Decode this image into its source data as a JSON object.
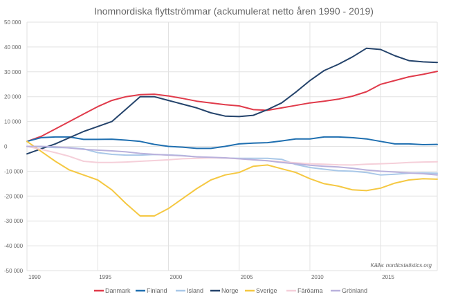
{
  "chart_data": {
    "type": "line",
    "title": "Inomnordiska flyttströmmar (ackumulerat netto åren 1990 - 2019)",
    "source_note": "Källa: nordicstatistics.org",
    "xlabel": "",
    "ylabel": "",
    "x": [
      1990,
      1991,
      1992,
      1993,
      1994,
      1995,
      1996,
      1997,
      1998,
      1999,
      2000,
      2001,
      2002,
      2003,
      2004,
      2005,
      2006,
      2007,
      2008,
      2009,
      2010,
      2011,
      2012,
      2013,
      2014,
      2015,
      2016,
      2017,
      2018,
      2019
    ],
    "xticks": [
      1990,
      1995,
      2000,
      2005,
      2010,
      2015
    ],
    "xtick_labels": [
      "1990",
      "1995",
      "2000",
      "2005",
      "2010",
      "2015"
    ],
    "xlim": [
      1990,
      2019
    ],
    "ylim": [
      -50000,
      50000
    ],
    "yticks": [
      -50000,
      -40000,
      -30000,
      -20000,
      -10000,
      0,
      10000,
      20000,
      30000,
      40000,
      50000
    ],
    "ytick_labels": [
      "-50 000",
      "-40 000",
      "-30 000",
      "-20 000",
      "-10 000",
      "0",
      "10 000",
      "20 000",
      "30 000",
      "40 000",
      "50 000"
    ],
    "grid": true,
    "legend_position": "bottom",
    "series": [
      {
        "name": "Danmark",
        "color": "#e03a4a",
        "values": [
          2000,
          4000,
          7000,
          10000,
          13000,
          16000,
          18500,
          20000,
          20800,
          21000,
          20300,
          19300,
          18200,
          17500,
          16800,
          16300,
          14800,
          14500,
          15500,
          16500,
          17500,
          18200,
          19000,
          20200,
          22000,
          25000,
          26500,
          28000,
          29000,
          30200
        ]
      },
      {
        "name": "Finland",
        "color": "#1f6fb0",
        "values": [
          2000,
          3500,
          3800,
          3800,
          2800,
          2800,
          2900,
          2500,
          2000,
          800,
          0,
          -300,
          -800,
          -800,
          0,
          1000,
          1300,
          1500,
          2200,
          3000,
          3000,
          3800,
          3800,
          3500,
          3000,
          2000,
          1000,
          1000,
          700,
          800
        ]
      },
      {
        "name": "Island",
        "color": "#a9c8e8",
        "values": [
          0,
          -200,
          -500,
          -500,
          -1000,
          -2500,
          -3200,
          -3500,
          -3500,
          -3300,
          -3400,
          -3700,
          -4200,
          -4500,
          -4700,
          -4800,
          -4800,
          -4800,
          -5200,
          -7300,
          -8500,
          -9200,
          -9800,
          -10000,
          -10500,
          -11500,
          -11200,
          -10800,
          -10700,
          -10800
        ]
      },
      {
        "name": "Norge",
        "color": "#24436b",
        "values": [
          -3000,
          -1000,
          1000,
          3500,
          6000,
          8000,
          10000,
          15000,
          20000,
          20000,
          18500,
          17000,
          15500,
          13500,
          12200,
          12000,
          12500,
          14800,
          17500,
          21800,
          26500,
          30500,
          33000,
          36000,
          39500,
          39000,
          36500,
          34500,
          34000,
          33800
        ]
      },
      {
        "name": "Sverige",
        "color": "#f5c842",
        "values": [
          2000,
          -2000,
          -6000,
          -9500,
          -11500,
          -13500,
          -17500,
          -23000,
          -28000,
          -28000,
          -25000,
          -21000,
          -17000,
          -13500,
          -11500,
          -10500,
          -8000,
          -7500,
          -9000,
          -10500,
          -13000,
          -15000,
          -16000,
          -17500,
          -17800,
          -16800,
          -14800,
          -13500,
          -13000,
          -13200
        ]
      },
      {
        "name": "Färöarna",
        "color": "#f5cfd9",
        "values": [
          0,
          -1200,
          -2500,
          -4000,
          -6000,
          -6500,
          -6500,
          -6300,
          -6000,
          -5700,
          -5400,
          -5000,
          -4800,
          -4600,
          -4700,
          -5000,
          -5400,
          -5800,
          -6200,
          -6600,
          -7000,
          -7200,
          -7400,
          -7500,
          -7200,
          -7000,
          -6800,
          -6500,
          -6300,
          -6200
        ]
      },
      {
        "name": "Grönland",
        "color": "#b9b1dc",
        "values": [
          0,
          0,
          -200,
          -600,
          -1200,
          -1500,
          -1800,
          -2200,
          -2800,
          -3200,
          -3500,
          -3800,
          -4200,
          -4400,
          -4600,
          -5000,
          -5400,
          -5800,
          -6500,
          -7000,
          -7600,
          -8000,
          -8300,
          -8800,
          -9500,
          -10000,
          -10300,
          -10700,
          -11000,
          -11500
        ]
      }
    ]
  }
}
